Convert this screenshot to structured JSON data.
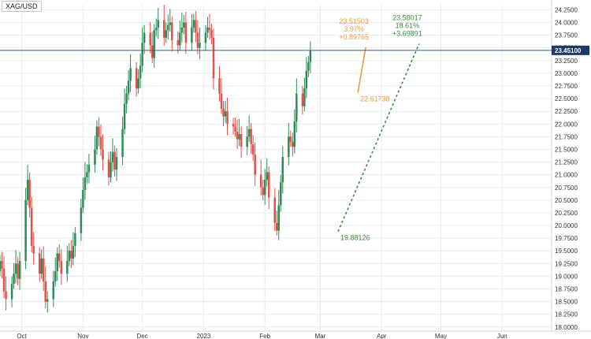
{
  "symbol": "XAG/USD",
  "colors": {
    "bull": "#2e8b57",
    "bear": "#e2504a",
    "wick": "#555555",
    "grid": "#e6ecf2",
    "axis_text": "#333333",
    "price_line": "#2f5f8f",
    "price_badge_bg": "#1f3b63",
    "orange": "#f2983a",
    "green": "#3e8a3e"
  },
  "chart_data": {
    "type": "candlestick",
    "title": "",
    "ylim": [
      17.95,
      24.35
    ],
    "y_ticks": [
      18.0,
      18.25,
      18.5,
      18.75,
      19.0,
      19.25,
      19.5,
      19.75,
      20.0,
      20.25,
      20.5,
      20.75,
      21.0,
      21.25,
      21.5,
      21.75,
      22.0,
      22.25,
      22.5,
      22.75,
      23.0,
      23.25,
      23.5,
      23.75,
      24.0,
      24.25
    ],
    "y_tick_labels": [
      "18.0000",
      "18.2500",
      "18.5000",
      "18.7500",
      "19.0000",
      "19.2500",
      "19.5000",
      "19.7500",
      "20.0000",
      "20.2500",
      "20.5000",
      "20.7500",
      "21.0000",
      "21.2500",
      "21.5000",
      "21.7500",
      "22.0000",
      "22.2500",
      "22.5000",
      "22.7500",
      "23.0000",
      "23.2500",
      "23.5000",
      "23.7500",
      "24.0000",
      "24.2500"
    ],
    "x_axis": {
      "start_date": "2022-09-20",
      "end_date": "2023-06-26",
      "ticks": [
        {
          "date": "2022-10-01",
          "label": "Oct"
        },
        {
          "date": "2022-11-01",
          "label": "Nov"
        },
        {
          "date": "2022-12-01",
          "label": "Dec"
        },
        {
          "date": "2023-01-01",
          "label": "2023"
        },
        {
          "date": "2023-02-01",
          "label": "Feb"
        },
        {
          "date": "2023-03-01",
          "label": "Mar"
        },
        {
          "date": "2023-04-01",
          "label": "Apr"
        },
        {
          "date": "2023-05-01",
          "label": "May"
        },
        {
          "date": "2023-06-01",
          "label": "Jun"
        }
      ]
    },
    "current_price": {
      "value": 23.451,
      "label": "23.45100"
    },
    "closes": [
      19.3,
      19.15,
      18.7,
      18.55,
      18.85,
      19.05,
      19.25,
      18.95,
      19.3,
      20.5,
      20.9,
      20.35,
      19.6,
      19.45,
      19.05,
      19.35,
      18.9,
      18.5,
      18.55,
      18.9,
      19.1,
      19.45,
      19.3,
      19.05,
      19.3,
      19.5,
      19.35,
      19.6,
      19.85,
      20.35,
      20.7,
      20.95,
      21.05,
      21.2,
      21.5,
      21.95,
      21.75,
      21.5,
      21.3,
      20.95,
      21.25,
      21.45,
      21.1,
      21.35,
      21.9,
      22.4,
      22.6,
      22.85,
      23.1,
      22.7,
      22.9,
      23.15,
      23.6,
      23.8,
      23.55,
      23.3,
      23.85,
      23.9,
      24.05,
      23.7,
      23.85,
      23.95,
      24.0,
      23.65,
      23.55,
      23.8,
      23.9,
      24.0,
      23.6,
      23.9,
      24.05,
      23.8,
      23.5,
      23.6,
      23.8,
      23.9,
      23.85,
      23.7,
      22.9,
      22.6,
      22.3,
      22.15,
      22.25,
      22.0,
      21.95,
      21.85,
      21.7,
      21.8,
      21.55,
      21.75,
      21.9,
      21.6,
      21.4,
      21.0,
      20.75,
      20.6,
      20.9,
      21.05,
      20.55,
      20.05,
      19.9,
      20.4,
      20.85,
      21.35,
      21.75,
      21.65,
      21.55,
      22.05,
      22.6,
      22.35,
      22.7,
      23.05,
      23.22,
      23.45
    ],
    "annotations": [
      {
        "type": "measure",
        "color": "orange",
        "from": {
          "date": "2023-03-20",
          "price": 22.61738
        },
        "to": {
          "date": "2023-03-24",
          "price": 23.51503
        },
        "lines": [
          "23.51503",
          "3.97%",
          "+0.89765"
        ],
        "base_label": "22.61738"
      },
      {
        "type": "measure",
        "color": "green",
        "from": {
          "date": "2023-03-10",
          "price": 19.88126
        },
        "to": {
          "date": "2023-04-20",
          "price": 23.58017
        },
        "lines": [
          "23.58017",
          "18.61%",
          "+3.69891"
        ],
        "base_label": "19.88126"
      }
    ]
  }
}
